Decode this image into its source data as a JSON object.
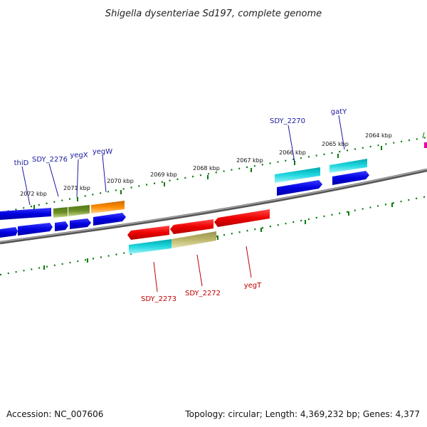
{
  "title": "Shigella dysenteriae Sd197, complete genome",
  "footer": {
    "accession": "Accession: NC_007606",
    "summary": "Topology: circular; Length: 4,369,232 bp; Genes: 4,377"
  },
  "ticks": {
    "labels": [
      "2072 kbp",
      "2071 kbp",
      "2070 kbp",
      "2069 kbp",
      "2068 kbp",
      "2067 kbp",
      "2066 kbp",
      "2065 kbp",
      "2064 kbp"
    ]
  },
  "gene_labels": {
    "top": [
      "thiD",
      "SDY_2276",
      "yegX",
      "yegW",
      "SDY_2270",
      "gatY"
    ],
    "bottom": [
      "SDY_2273",
      "SDY_2272",
      "yegT"
    ]
  },
  "colors": {
    "blue": "#0000ee",
    "olive": "#6b8e23",
    "orange": "#ff8c00",
    "red": "#ee0000",
    "cyan": "#00c8d0",
    "khaki": "#bdb76b",
    "tick_green": "#0a7a0a",
    "backbone": "#777777"
  }
}
